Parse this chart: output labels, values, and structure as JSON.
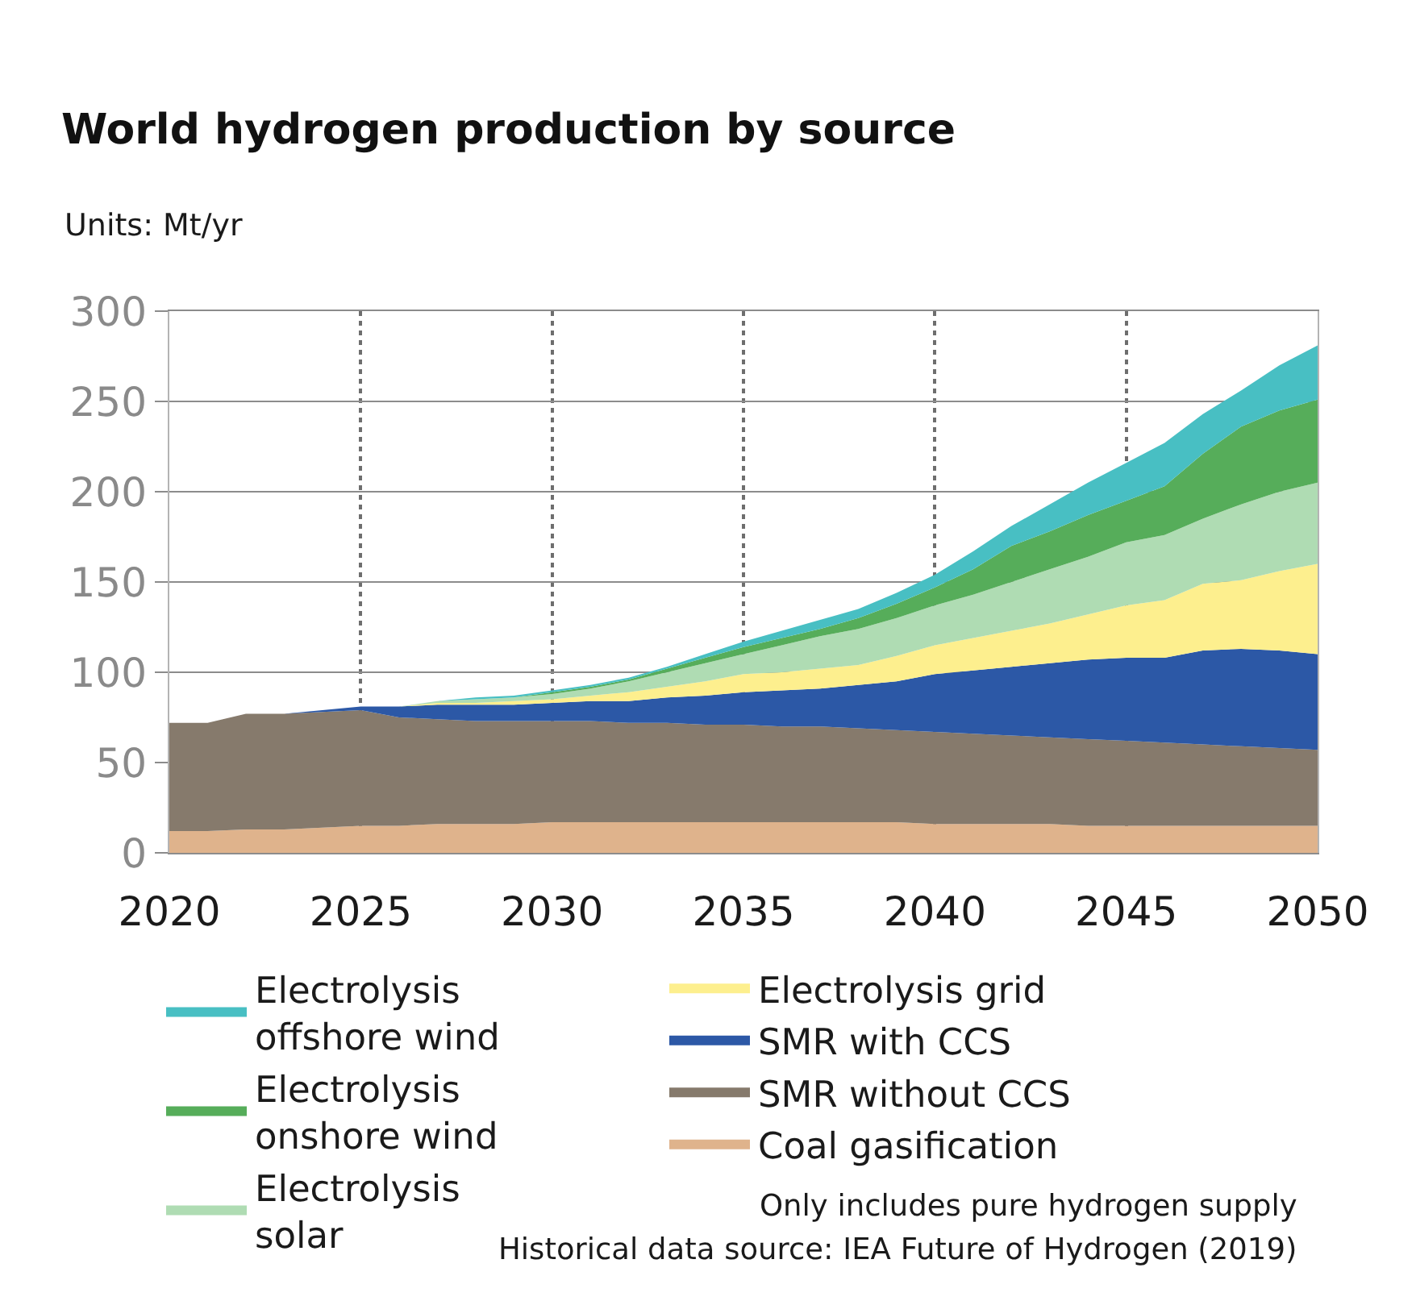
{
  "chart_data": {
    "type": "area",
    "title": "World hydrogen production by source",
    "ylabel": "Units: Mt/yr",
    "x": [
      2020,
      2021,
      2022,
      2023,
      2024,
      2025,
      2026,
      2027,
      2028,
      2029,
      2030,
      2031,
      2032,
      2033,
      2034,
      2035,
      2036,
      2037,
      2038,
      2039,
      2040,
      2041,
      2042,
      2043,
      2044,
      2045,
      2046,
      2047,
      2048,
      2049,
      2050
    ],
    "stacked": true,
    "series": [
      {
        "name": "Coal gasification",
        "color": "#dfb38c",
        "values": [
          12,
          12,
          13,
          13,
          14,
          15,
          15,
          16,
          16,
          16,
          17,
          17,
          17,
          17,
          17,
          17,
          17,
          17,
          17,
          17,
          16,
          16,
          16,
          16,
          15,
          15,
          15,
          15,
          15,
          15,
          15
        ]
      },
      {
        "name": "SMR without CCS",
        "color": "#867a6c",
        "values": [
          60,
          60,
          64,
          64,
          64,
          64,
          60,
          58,
          57,
          57,
          56,
          56,
          55,
          55,
          54,
          54,
          53,
          53,
          52,
          51,
          51,
          50,
          49,
          48,
          48,
          47,
          46,
          45,
          44,
          43,
          42
        ]
      },
      {
        "name": "SMR with CCS",
        "color": "#2c58a6",
        "values": [
          0,
          0,
          0,
          0,
          1,
          2,
          6,
          8,
          9,
          9,
          10,
          11,
          12,
          14,
          16,
          18,
          20,
          21,
          24,
          27,
          32,
          35,
          38,
          41,
          44,
          46,
          47,
          52,
          54,
          54,
          53
        ]
      },
      {
        "name": "Electrolysis grid",
        "color": "#fdef8e",
        "values": [
          0,
          0,
          0,
          0,
          0,
          0,
          0,
          1,
          1,
          2,
          2,
          3,
          5,
          6,
          8,
          10,
          10,
          11,
          11,
          14,
          16,
          18,
          20,
          22,
          25,
          29,
          32,
          37,
          38,
          44,
          50
        ]
      },
      {
        "name": "Electrolysis solar",
        "color": "#afdcb3",
        "values": [
          0,
          0,
          0,
          0,
          0,
          0,
          0,
          1,
          2,
          2,
          3,
          4,
          6,
          8,
          10,
          11,
          15,
          18,
          20,
          21,
          22,
          24,
          27,
          30,
          32,
          35,
          36,
          36,
          42,
          44,
          45
        ]
      },
      {
        "name": "Electrolysis onshore wind",
        "color": "#56ad5a",
        "values": [
          0,
          0,
          0,
          0,
          0,
          0,
          0,
          0,
          0,
          0,
          1,
          1,
          1,
          2,
          3,
          4,
          4,
          4,
          6,
          8,
          10,
          14,
          20,
          21,
          23,
          23,
          27,
          36,
          43,
          45,
          46
        ]
      },
      {
        "name": "Electrolysis offshore wind",
        "color": "#48bfc3",
        "values": [
          0,
          0,
          0,
          0,
          0,
          0,
          0,
          0,
          1,
          1,
          1,
          1,
          1,
          1,
          2,
          3,
          4,
          5,
          5,
          6,
          7,
          10,
          11,
          15,
          18,
          21,
          24,
          22,
          20,
          25,
          30
        ]
      }
    ],
    "xlim": [
      2020,
      2050
    ],
    "ylim": [
      0,
      300
    ],
    "xticks": [
      2020,
      2025,
      2030,
      2035,
      2040,
      2045,
      2050
    ],
    "yticks": [
      0,
      50,
      100,
      150,
      200,
      250,
      300
    ],
    "grid": true,
    "legend": "bottom",
    "annotations": [
      "Only includes pure hydrogen supply",
      "Historical data source: IEA Future of Hydrogen (2019)"
    ]
  }
}
